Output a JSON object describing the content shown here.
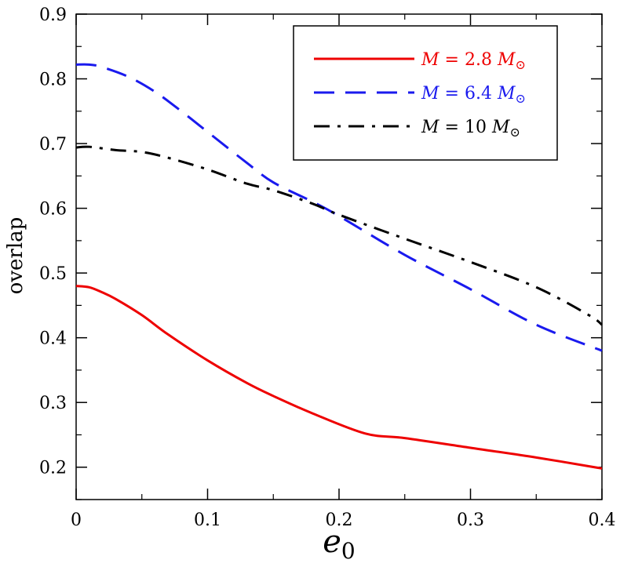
{
  "chart_data": {
    "type": "line",
    "xlabel": "e",
    "xlabel_sub": "0",
    "ylabel": "overlap",
    "xlim": [
      0,
      0.4
    ],
    "ylim": [
      0.15,
      0.9
    ],
    "x_ticks": [
      0,
      0.1,
      0.2,
      0.3,
      0.4
    ],
    "x_tick_labels": [
      "0",
      "0.1",
      "0.2",
      "0.3",
      "0.4"
    ],
    "y_ticks": [
      0.2,
      0.3,
      0.4,
      0.5,
      0.6,
      0.7,
      0.8,
      0.9
    ],
    "y_tick_labels": [
      "0.2",
      "0.3",
      "0.4",
      "0.5",
      "0.6",
      "0.7",
      "0.8",
      "0.9"
    ],
    "grid": false,
    "legend_position": "top-right",
    "series": [
      {
        "name": "M = 2.8 M⊙",
        "label_lhs": "M",
        "label_eq": " = ",
        "label_value": "2.8",
        "label_unit": "M",
        "label_unit_sub": "⊙",
        "color": "#ee0000",
        "dash": "solid",
        "x": [
          0,
          0.01,
          0.02,
          0.03,
          0.05,
          0.07,
          0.1,
          0.13,
          0.15,
          0.18,
          0.22,
          0.25,
          0.3,
          0.35,
          0.4
        ],
        "y": [
          0.48,
          0.478,
          0.47,
          0.46,
          0.435,
          0.405,
          0.365,
          0.33,
          0.31,
          0.283,
          0.252,
          0.245,
          0.23,
          0.215,
          0.198
        ]
      },
      {
        "name": "M = 6.4 M⊙",
        "label_lhs": "M",
        "label_eq": " = ",
        "label_value": "6.4",
        "label_unit": "M",
        "label_unit_sub": "⊙",
        "color": "#1a1aee",
        "dash": "dashed",
        "x": [
          0,
          0.01,
          0.02,
          0.04,
          0.06,
          0.08,
          0.1,
          0.13,
          0.15,
          0.18,
          0.2,
          0.25,
          0.3,
          0.35,
          0.4
        ],
        "y": [
          0.822,
          0.822,
          0.818,
          0.803,
          0.78,
          0.75,
          0.718,
          0.67,
          0.64,
          0.61,
          0.588,
          0.528,
          0.475,
          0.42,
          0.38
        ]
      },
      {
        "name": "M = 10 M⊙",
        "label_lhs": "M",
        "label_eq": " = ",
        "label_value": "10",
        "label_unit": "M",
        "label_unit_sub": "⊙",
        "color": "#000000",
        "dash": "dashdot",
        "x": [
          0,
          0.01,
          0.03,
          0.05,
          0.07,
          0.1,
          0.13,
          0.15,
          0.18,
          0.2,
          0.25,
          0.3,
          0.35,
          0.39,
          0.4
        ],
        "y": [
          0.694,
          0.695,
          0.69,
          0.687,
          0.678,
          0.66,
          0.638,
          0.628,
          0.607,
          0.59,
          0.553,
          0.517,
          0.478,
          0.435,
          0.42
        ]
      }
    ]
  }
}
